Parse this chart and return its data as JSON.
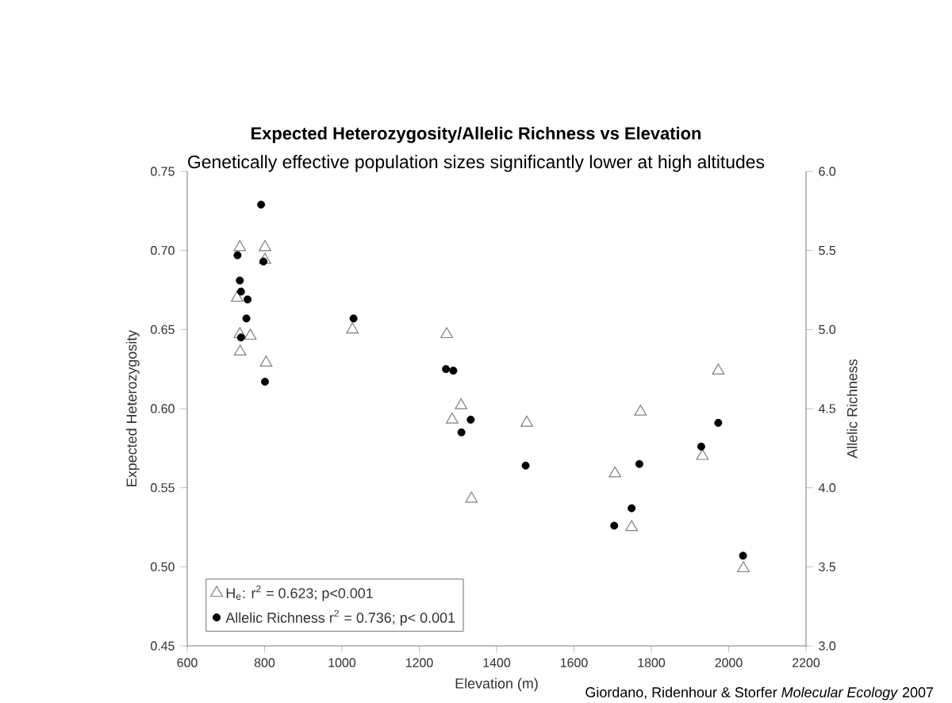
{
  "chart_data": {
    "type": "scatter",
    "title": "Expected Heterozygosity/Allelic Richness vs Elevation",
    "subtitle": "Genetically effective population sizes significantly lower at high altitudes",
    "xlabel": "Elevation (m)",
    "ylabel": "Expected Heterozygosity",
    "y2label": "Allelic Richness",
    "annotations": [
      "Giordano, Ridenhour & Storfer *Molecular Ecology* 2007"
    ],
    "series": [
      {
        "name": "H$_{e}$:  r$^{2}$ = 0.623; p<0.001",
        "color": "#808080",
        "marker": "triangle",
        "x": [
          736,
          801,
          801,
          729,
          736,
          763,
          737,
          804,
          1027,
          1271,
          1285,
          1308,
          1335,
          1478,
          1706,
          1772,
          1749,
          1932,
          1973,
          2038
        ],
        "values": [
          0.702,
          0.702,
          0.694,
          0.67,
          0.647,
          0.646,
          0.636,
          0.629,
          0.65,
          0.647,
          0.593,
          0.602,
          0.543,
          0.591,
          0.559,
          0.598,
          0.525,
          0.57,
          0.624,
          0.499
        ]
      },
      {
        "name": "Allelic Richness r$^{2}$ = 0.736; p< 0.001",
        "color": "#000000",
        "marker": "circle",
        "axis": "y2",
        "x": [
          791,
          730,
          797,
          736,
          739,
          756,
          753,
          739,
          801,
          1030,
          1269,
          1288,
          1333,
          1309,
          1475,
          1704,
          1749,
          1769,
          1929,
          1973,
          2037
        ],
        "values": [
          5.79,
          5.47,
          5.43,
          5.31,
          5.24,
          5.19,
          5.07,
          4.95,
          4.67,
          5.07,
          4.75,
          4.74,
          4.43,
          4.35,
          4.14,
          3.76,
          3.87,
          4.15,
          4.26,
          4.41,
          3.57
        ]
      }
    ],
    "xlim": [
      600,
      2200
    ],
    "xticks": [
      600,
      800,
      1000,
      1200,
      1400,
      1600,
      1800,
      2000,
      2200
    ],
    "ylim": [
      0.45,
      0.75
    ],
    "yticks": [
      0.45,
      {
        "value": 0.5,
        "label": "0.50"
      },
      0.55,
      {
        "value": 0.6,
        "label": "0.60"
      },
      0.65,
      {
        "value": 0.7,
        "label": "0.70"
      },
      0.75
    ],
    "y2lim": [
      3.0,
      6.0
    ],
    "y2ticks": [
      {
        "value": 3.0,
        "label": "3.0"
      },
      3.5,
      {
        "value": 4.0,
        "label": "4.0"
      },
      4.5,
      {
        "value": 5.0,
        "label": "5.0"
      },
      5.5,
      {
        "value": 6.0,
        "label": "6.0"
      }
    ],
    "legend": "bottom left"
  }
}
